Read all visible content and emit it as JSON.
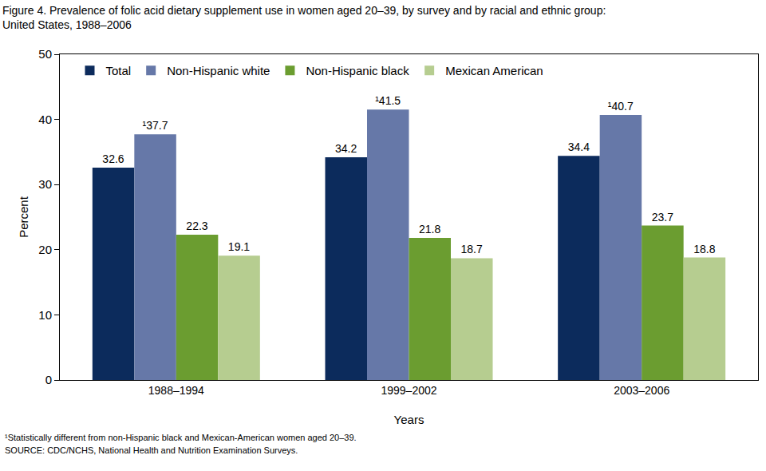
{
  "chart_data": {
    "type": "bar",
    "title": "Figure 4. Prevalence of folic acid dietary supplement use in women aged 20–39, by survey and by racial and ethnic group:\nUnited States, 1988–2006",
    "x_label": "Years",
    "y_label": "Percent",
    "categories": [
      "1988–1994",
      "1999–2002",
      "2003–2006"
    ],
    "series": [
      {
        "name": "Total",
        "color": "#0c2b5c",
        "values": [
          32.6,
          34.2,
          34.4
        ]
      },
      {
        "name": "Non-Hispanic white",
        "color": "#6678a8",
        "values": [
          37.7,
          41.5,
          40.7
        ],
        "value_labels": [
          "¹37.7",
          "¹41.5",
          "¹40.7"
        ]
      },
      {
        "name": "Non-Hispanic black",
        "color": "#6b9d30",
        "values": [
          22.3,
          21.8,
          23.7
        ]
      },
      {
        "name": "Mexican American",
        "color": "#b6cd90",
        "values": [
          19.1,
          18.7,
          18.8
        ]
      }
    ],
    "ylim": [
      0,
      50
    ],
    "yticks": [
      0,
      10,
      20,
      30,
      40,
      50
    ],
    "grid": false,
    "legend": "top left",
    "data_labels": true,
    "annotations": [
      "¹Statistically different from non-Hispanic black and Mexican-American women aged 20–39.",
      "SOURCE: CDC/NCHS, National Health and Nutrition Examination Surveys."
    ]
  }
}
